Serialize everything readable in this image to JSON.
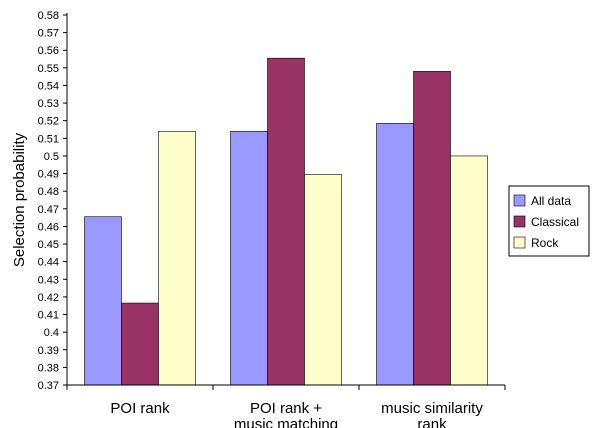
{
  "chart_data": {
    "type": "bar",
    "categories": [
      [
        "POI rank"
      ],
      [
        "POI rank +",
        "music matching"
      ],
      [
        "music similarity",
        "rank"
      ]
    ],
    "series": [
      {
        "name": "All data",
        "values": [
          0.4655,
          0.514,
          0.5185
        ],
        "color": "#9999ff"
      },
      {
        "name": "Classical",
        "values": [
          0.4165,
          0.5555,
          0.548
        ],
        "color": "#993366"
      },
      {
        "name": "Rock",
        "values": [
          0.514,
          0.4895,
          0.5
        ],
        "color": "#ffffcc"
      }
    ],
    "ylabel": "Selection probability",
    "xlabel": "",
    "ylim": [
      0.37,
      0.58
    ],
    "ytick_step": 0.01,
    "ytick_labels": [
      "0.37",
      "0.38",
      "0.39",
      "0.4",
      "0.41",
      "0.42",
      "0.43",
      "0.44",
      "0.45",
      "0.46",
      "0.47",
      "0.48",
      "0.49",
      "0.5",
      "0.51",
      "0.52",
      "0.53",
      "0.54",
      "0.55",
      "0.56",
      "0.57",
      "0.58"
    ],
    "grid": false,
    "legend": "right"
  }
}
